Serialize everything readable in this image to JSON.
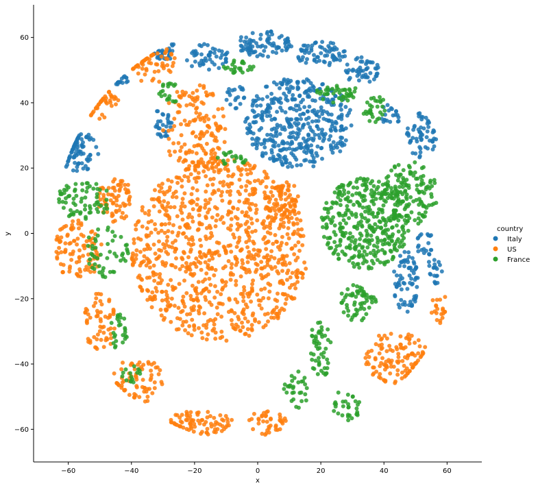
{
  "chart_data": {
    "type": "scatter",
    "title": "",
    "xlabel": "x",
    "ylabel": "y",
    "xlim": [
      -71,
      71
    ],
    "ylim": [
      -70,
      70
    ],
    "xticks": [
      -60,
      -40,
      -20,
      0,
      20,
      40,
      60
    ],
    "yticks": [
      -60,
      -40,
      -20,
      0,
      20,
      40,
      60
    ],
    "grid": false,
    "legend": {
      "title": "country",
      "position": "right"
    },
    "series": [
      {
        "name": "Italy",
        "color": "#1f77b4",
        "clusters": [
          {
            "cx": 13,
            "cy": 34,
            "rx": 17,
            "ry": 14,
            "n": 420
          },
          {
            "cx": 2,
            "cy": 58,
            "rx": 9,
            "ry": 4,
            "n": 80
          },
          {
            "cx": 20,
            "cy": 55,
            "rx": 8,
            "ry": 4,
            "n": 70
          },
          {
            "cx": 33,
            "cy": 50,
            "rx": 6,
            "ry": 4,
            "n": 50
          },
          {
            "cx": -16,
            "cy": 54,
            "rx": 7,
            "ry": 4,
            "n": 50
          },
          {
            "cx": -30,
            "cy": 56,
            "rx": 5,
            "ry": 3,
            "n": 30
          },
          {
            "cx": -30,
            "cy": 34,
            "rx": 3,
            "ry": 5,
            "n": 30
          },
          {
            "cx": -57,
            "cy": 25,
            "rx": 7,
            "ry": 6,
            "n": 80
          },
          {
            "cx": -44,
            "cy": 47,
            "rx": 3,
            "ry": 2,
            "n": 15
          },
          {
            "cx": 52,
            "cy": 30,
            "rx": 5,
            "ry": 7,
            "n": 60
          },
          {
            "cx": 42,
            "cy": 36,
            "rx": 3,
            "ry": 4,
            "n": 20
          },
          {
            "cx": 47,
            "cy": -15,
            "rx": 4,
            "ry": 10,
            "n": 70
          },
          {
            "cx": 53,
            "cy": -3,
            "rx": 3,
            "ry": 4,
            "n": 20
          },
          {
            "cx": 56,
            "cy": -12,
            "rx": 3,
            "ry": 5,
            "n": 20
          },
          {
            "cx": -7,
            "cy": 42,
            "rx": 3,
            "ry": 4,
            "n": 20
          }
        ]
      },
      {
        "name": "US",
        "color": "#ff7f0e",
        "clusters": [
          {
            "cx": -12,
            "cy": -5,
            "rx": 28,
            "ry": 28,
            "n": 950
          },
          {
            "cx": -20,
            "cy": 32,
            "rx": 10,
            "ry": 14,
            "n": 150
          },
          {
            "cx": -45,
            "cy": 10,
            "rx": 6,
            "ry": 7,
            "n": 70
          },
          {
            "cx": -57,
            "cy": -5,
            "rx": 8,
            "ry": 9,
            "n": 100
          },
          {
            "cx": -50,
            "cy": -27,
            "rx": 5,
            "ry": 10,
            "n": 60
          },
          {
            "cx": -38,
            "cy": -45,
            "rx": 8,
            "ry": 7,
            "n": 70
          },
          {
            "cx": -18,
            "cy": -58,
            "rx": 10,
            "ry": 4,
            "n": 80
          },
          {
            "cx": 3,
            "cy": -58,
            "rx": 6,
            "ry": 4,
            "n": 40
          },
          {
            "cx": 44,
            "cy": -38,
            "rx": 10,
            "ry": 8,
            "n": 120
          },
          {
            "cx": 58,
            "cy": -23,
            "rx": 3,
            "ry": 5,
            "n": 20
          },
          {
            "cx": -34,
            "cy": 52,
            "rx": 8,
            "ry": 6,
            "n": 60
          },
          {
            "cx": -50,
            "cy": 40,
            "rx": 6,
            "ry": 5,
            "n": 40
          },
          {
            "cx": 8,
            "cy": 10,
            "rx": 6,
            "ry": 6,
            "n": 60
          }
        ]
      },
      {
        "name": "France",
        "color": "#2ca02c",
        "clusters": [
          {
            "cx": 34,
            "cy": 3,
            "rx": 14,
            "ry": 14,
            "n": 380
          },
          {
            "cx": 48,
            "cy": 12,
            "rx": 9,
            "ry": 10,
            "n": 130
          },
          {
            "cx": 32,
            "cy": -21,
            "rx": 6,
            "ry": 6,
            "n": 60
          },
          {
            "cx": 20,
            "cy": -35,
            "rx": 4,
            "ry": 9,
            "n": 50
          },
          {
            "cx": 12,
            "cy": -48,
            "rx": 4,
            "ry": 6,
            "n": 30
          },
          {
            "cx": 28,
            "cy": -53,
            "rx": 5,
            "ry": 5,
            "n": 30
          },
          {
            "cx": 25,
            "cy": 43,
            "rx": 7,
            "ry": 3,
            "n": 40
          },
          {
            "cx": 37,
            "cy": 38,
            "rx": 5,
            "ry": 4,
            "n": 30
          },
          {
            "cx": -6,
            "cy": 51,
            "rx": 5,
            "ry": 2,
            "n": 25
          },
          {
            "cx": -55,
            "cy": 10,
            "rx": 9,
            "ry": 6,
            "n": 70
          },
          {
            "cx": -48,
            "cy": -6,
            "rx": 7,
            "ry": 8,
            "n": 50
          },
          {
            "cx": -44,
            "cy": -30,
            "rx": 3,
            "ry": 6,
            "n": 25
          },
          {
            "cx": -40,
            "cy": -43,
            "rx": 3,
            "ry": 3,
            "n": 15
          },
          {
            "cx": -28,
            "cy": 43,
            "rx": 4,
            "ry": 3,
            "n": 20
          },
          {
            "cx": -8,
            "cy": 23,
            "rx": 5,
            "ry": 2,
            "n": 20
          }
        ]
      }
    ]
  }
}
